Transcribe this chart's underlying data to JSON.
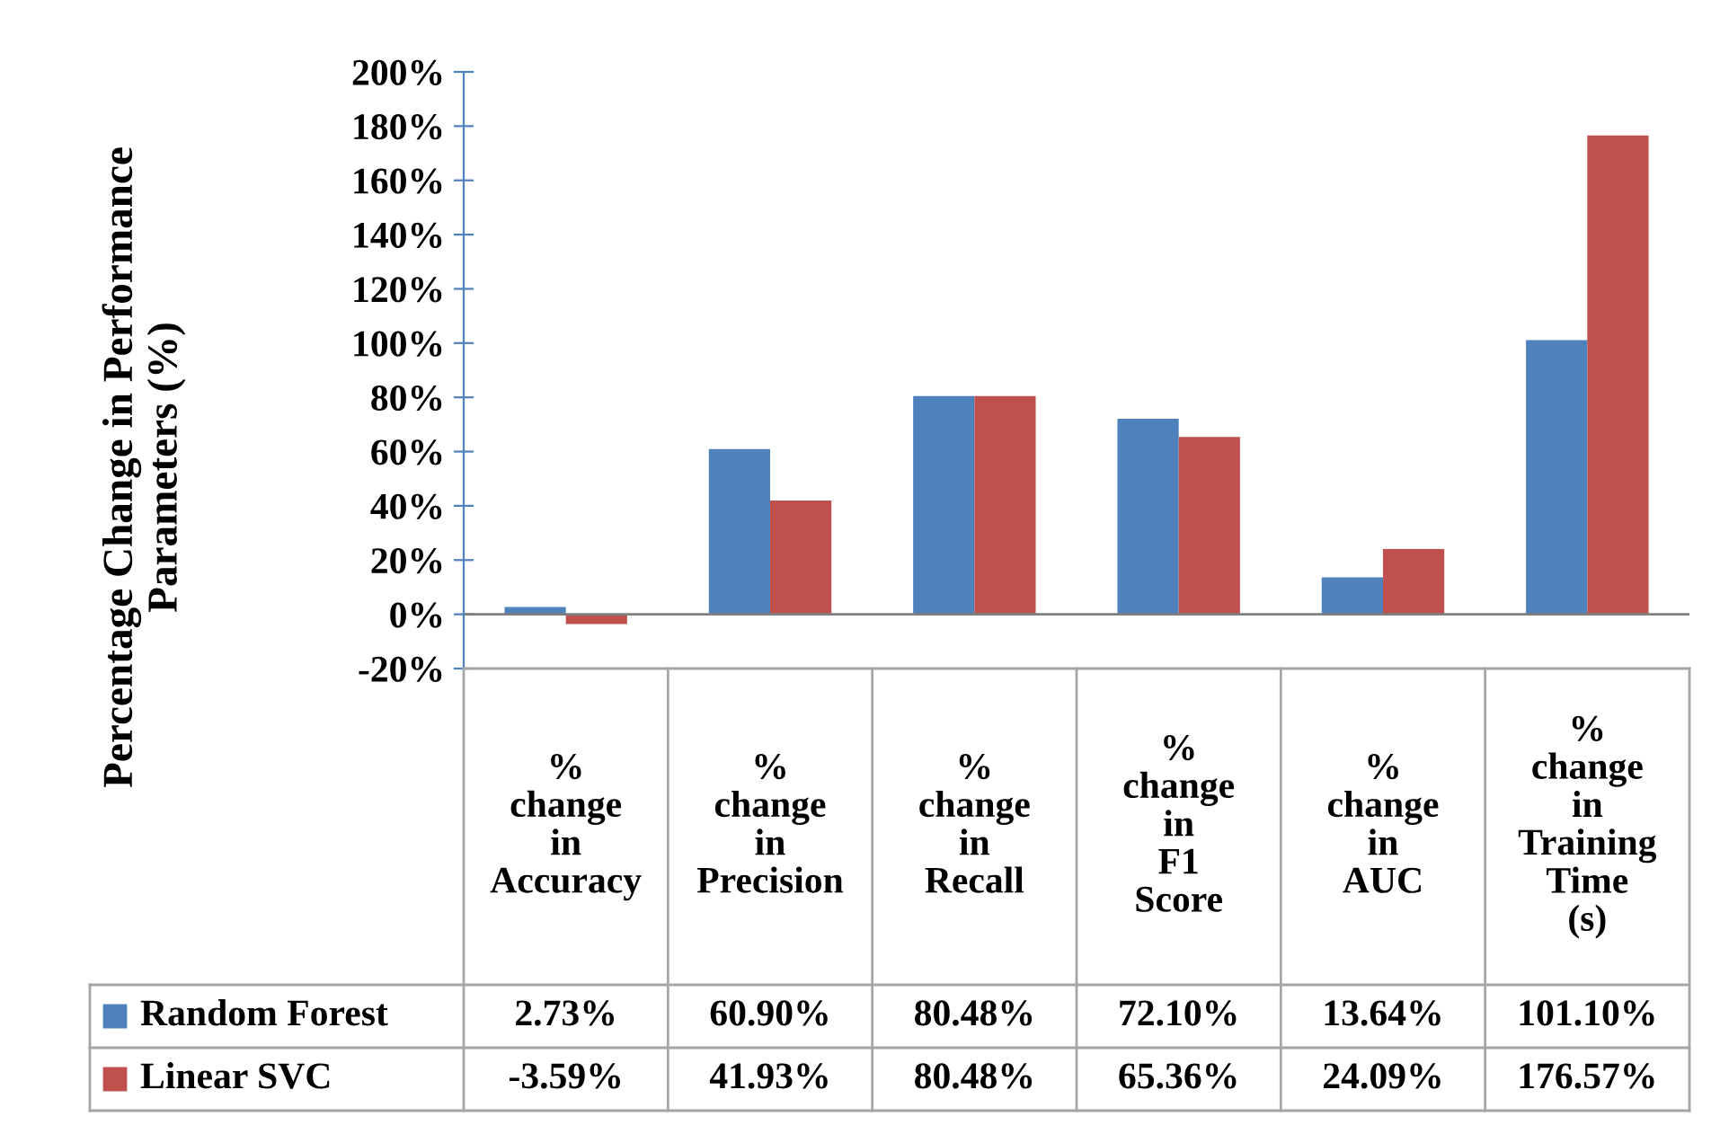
{
  "chart_data": {
    "type": "bar",
    "ylabel": "Percentage Change in Performance\nParameters (%)",
    "categories": [
      "% change in Accuracy",
      "% change in Precision",
      "% change in Recall",
      "% change in F1 Score",
      "% change in AUC",
      "% change in Training Time (s)"
    ],
    "series": [
      {
        "name": "Random Forest",
        "color": "#4f81bd",
        "values": [
          2.73,
          60.9,
          80.48,
          72.1,
          13.64,
          101.1
        ],
        "value_labels": [
          "2.73%",
          "60.90%",
          "80.48%",
          "72.10%",
          "13.64%",
          "101.10%"
        ]
      },
      {
        "name": "Linear SVC",
        "color": "#c0504d",
        "values": [
          -3.59,
          41.93,
          80.48,
          65.36,
          24.09,
          176.57
        ],
        "value_labels": [
          "-3.59%",
          "41.93%",
          "80.48%",
          "65.36%",
          "24.09%",
          "176.57%"
        ]
      }
    ],
    "ylim": [
      -20,
      200
    ],
    "yticks": [
      {
        "value": -20,
        "label": "-20%"
      },
      {
        "value": 0,
        "label": "0%"
      },
      {
        "value": 20,
        "label": "20%"
      },
      {
        "value": 40,
        "label": "40%"
      },
      {
        "value": 60,
        "label": "60%"
      },
      {
        "value": 80,
        "label": "80%"
      },
      {
        "value": 100,
        "label": "100%"
      },
      {
        "value": 120,
        "label": "120%"
      },
      {
        "value": 140,
        "label": "140%"
      },
      {
        "value": 160,
        "label": "160%"
      },
      {
        "value": 180,
        "label": "180%"
      },
      {
        "value": 200,
        "label": "200%"
      }
    ],
    "legend": "bottom left"
  }
}
